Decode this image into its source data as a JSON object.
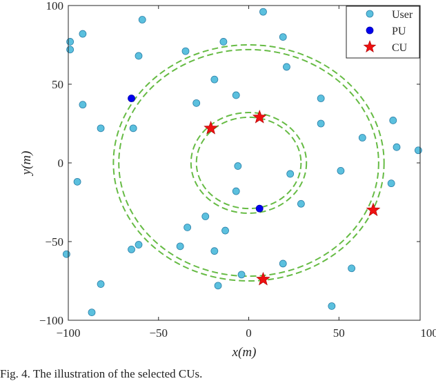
{
  "chart_data": {
    "type": "scatter",
    "xlabel": "x(m)",
    "ylabel": "y(m)",
    "xlim": [
      -100,
      95
    ],
    "ylim": [
      -100,
      100
    ],
    "xticks": [
      -100,
      -50,
      0,
      50,
      100
    ],
    "yticks": [
      -100,
      -50,
      0,
      50,
      100
    ],
    "grid": false,
    "legend_position": "top-right",
    "series": [
      {
        "name": "User",
        "color": "#5bc0de",
        "marker": "circle",
        "points": [
          [
            -99,
            72
          ],
          [
            -99,
            77
          ],
          [
            -92,
            82
          ],
          [
            -59,
            91
          ],
          [
            8,
            96
          ],
          [
            -61,
            68
          ],
          [
            -35,
            71
          ],
          [
            -14,
            77
          ],
          [
            19,
            80
          ],
          [
            21,
            61
          ],
          [
            -19,
            53
          ],
          [
            -7,
            43
          ],
          [
            -29,
            38
          ],
          [
            -92,
            37
          ],
          [
            -64,
            22
          ],
          [
            -82,
            22
          ],
          [
            40,
            41
          ],
          [
            40,
            25
          ],
          [
            63,
            16
          ],
          [
            80,
            27
          ],
          [
            82,
            10
          ],
          [
            94,
            8
          ],
          [
            -6,
            -2
          ],
          [
            23,
            -7
          ],
          [
            51,
            -5
          ],
          [
            -95,
            -12
          ],
          [
            -7,
            -18
          ],
          [
            79,
            -13
          ],
          [
            29,
            -26
          ],
          [
            -24,
            -34
          ],
          [
            -34,
            -41
          ],
          [
            -13,
            -43
          ],
          [
            -38,
            -53
          ],
          [
            -61,
            -52
          ],
          [
            -65,
            -55
          ],
          [
            -19,
            -56
          ],
          [
            -101,
            -58
          ],
          [
            19,
            -64
          ],
          [
            57,
            -67
          ],
          [
            -4,
            -71
          ],
          [
            -17,
            -78
          ],
          [
            -82,
            -77
          ],
          [
            -87,
            -95
          ],
          [
            46,
            -91
          ]
        ]
      },
      {
        "name": "PU",
        "color": "#0000ee",
        "marker": "circle",
        "points": [
          [
            -65,
            41
          ],
          [
            6,
            -29
          ]
        ]
      },
      {
        "name": "CU",
        "color": "#ee1111",
        "marker": "star",
        "points": [
          [
            -21,
            22
          ],
          [
            6,
            29
          ],
          [
            69,
            -30
          ],
          [
            8,
            -74
          ]
        ]
      }
    ],
    "rings": [
      {
        "radius_inner": 29,
        "radius_outer": 32,
        "color": "#66bb44",
        "style": "dashed"
      },
      {
        "radius_inner": 72,
        "radius_outer": 75,
        "color": "#66bb44",
        "style": "dashed"
      }
    ]
  },
  "caption": "Fig. 4. The illustration of the selected CUs."
}
